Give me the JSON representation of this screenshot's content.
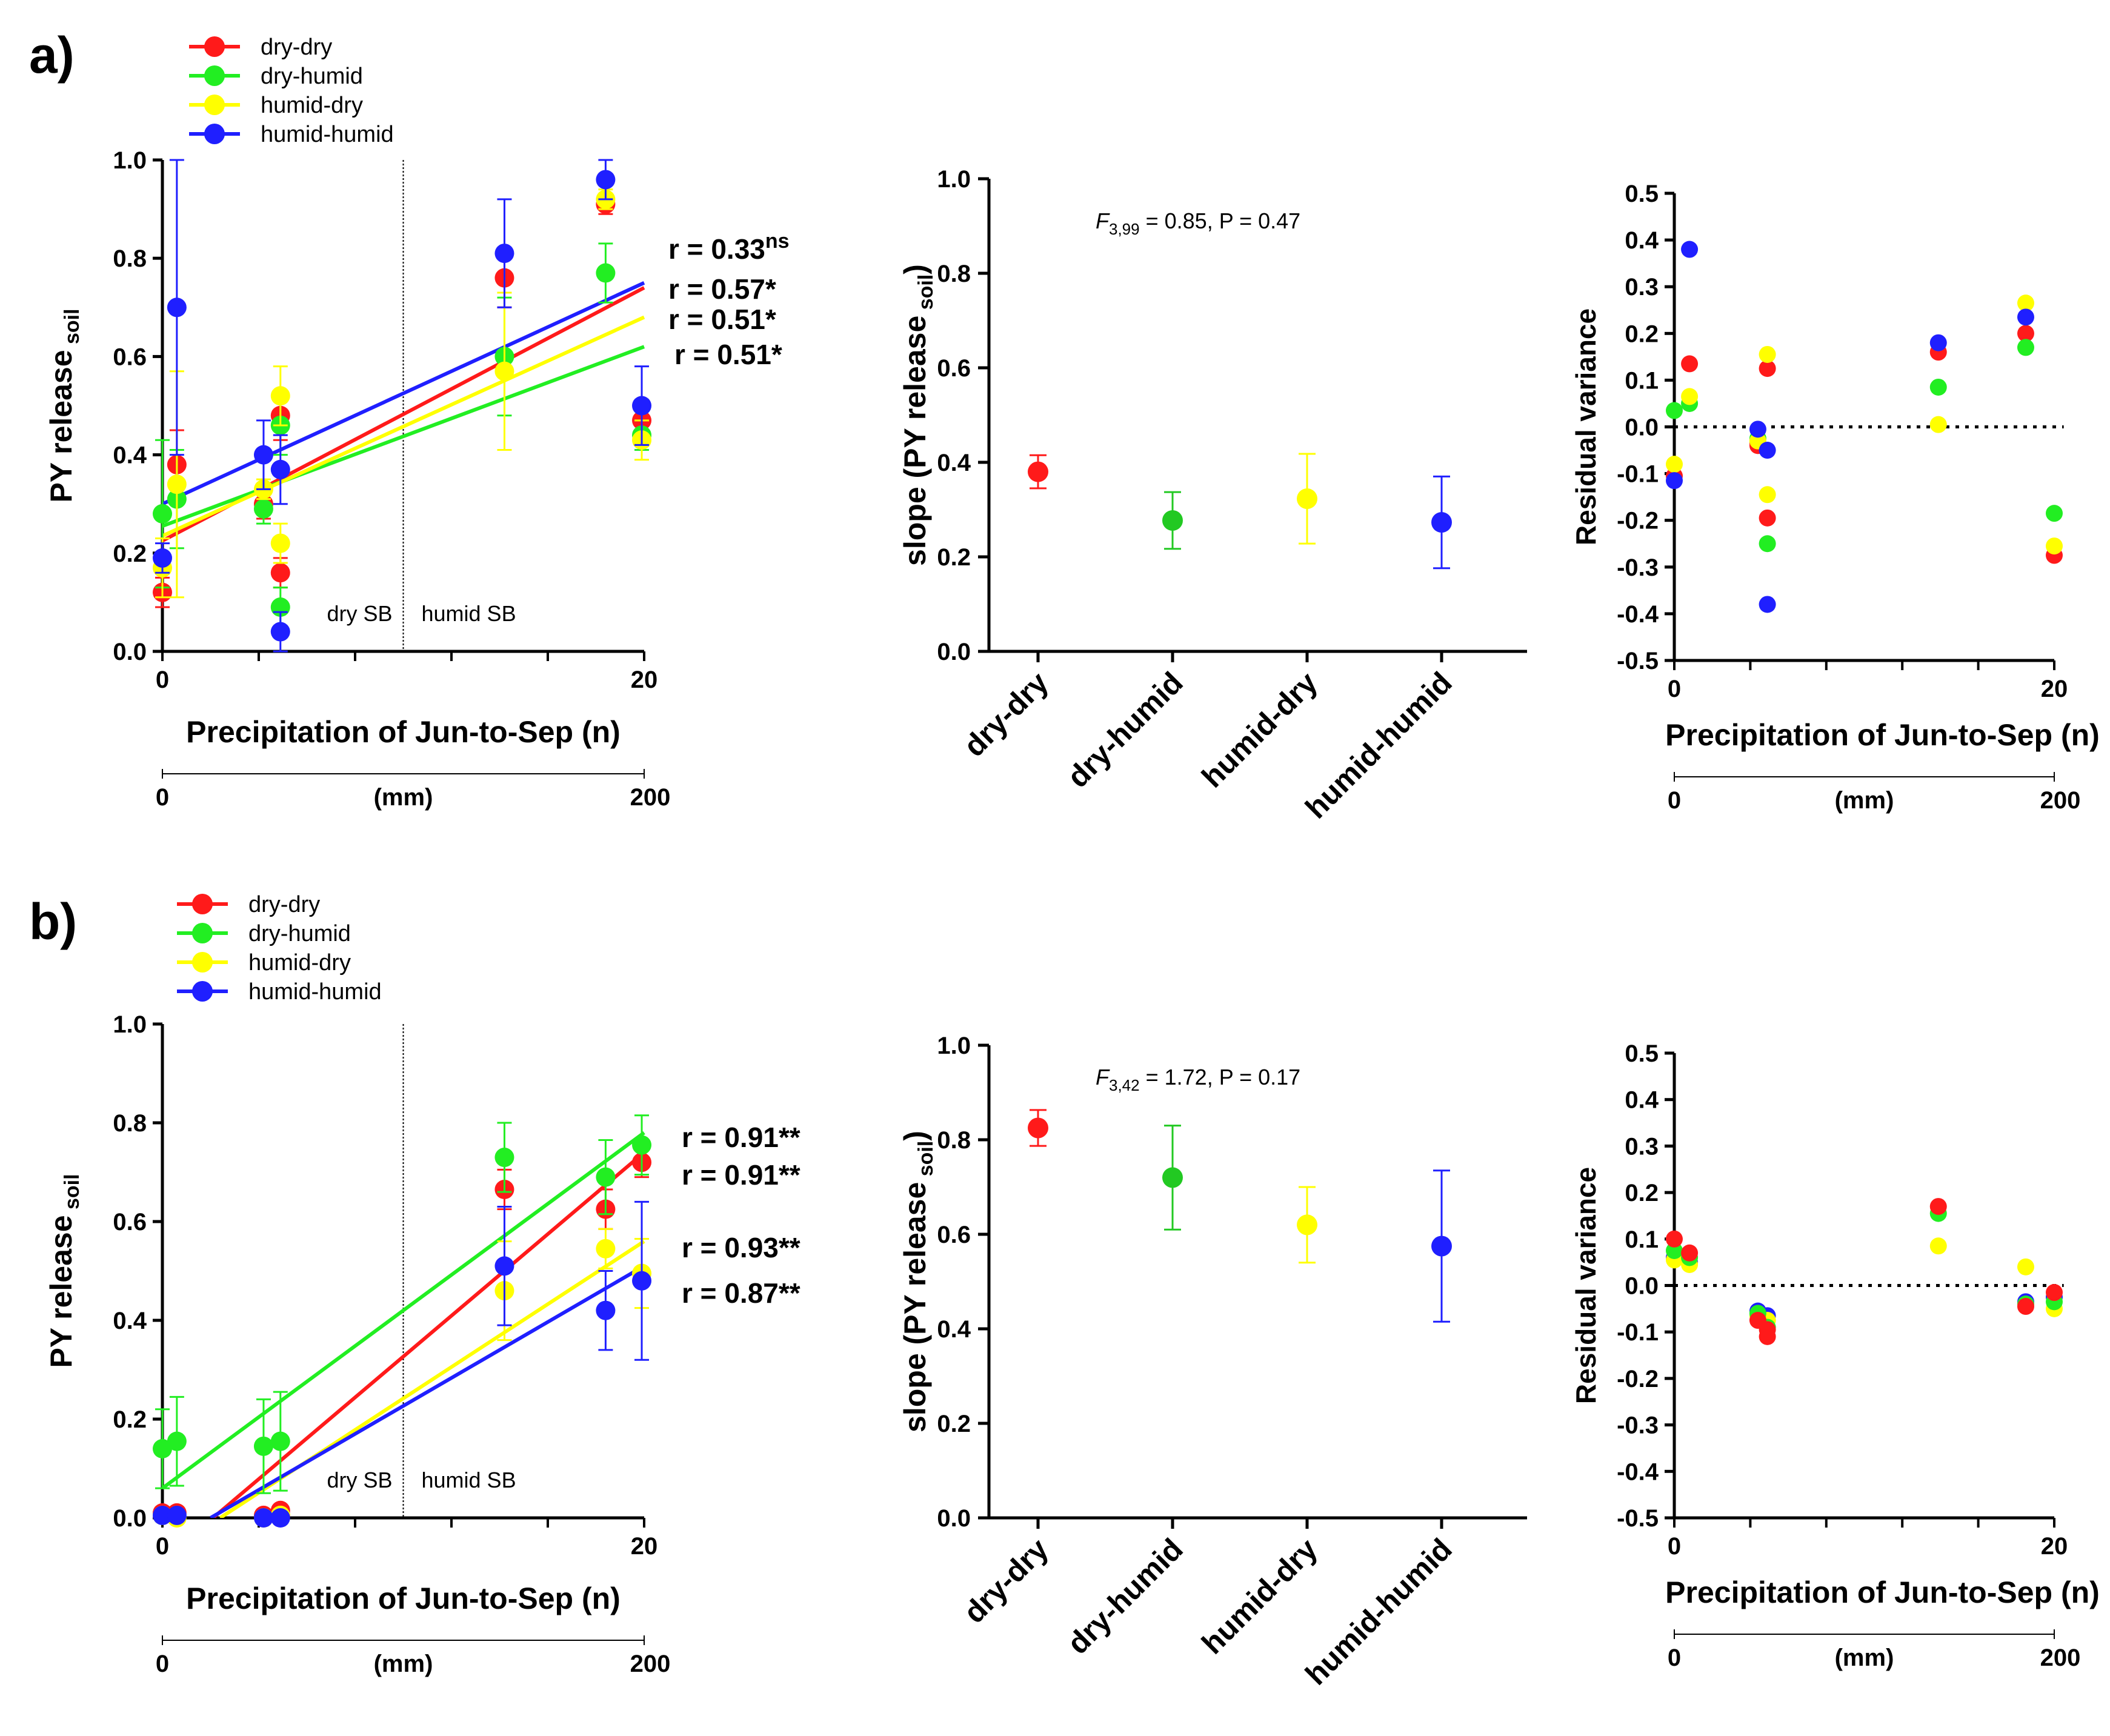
{
  "figure": {
    "panels": [
      {
        "letter": "a)",
        "legend": [
          {
            "label": "dry-dry",
            "color": "#ff1a1a"
          },
          {
            "label": "dry-humid",
            "color": "#22ee22"
          },
          {
            "label": "humid-dry",
            "color": "#ffff00"
          },
          {
            "label": "humid-humid",
            "color": "#1f1fff"
          }
        ],
        "r_labels": [
          {
            "text": "r = 0.33",
            "sup": "ns",
            "color": "#1f1fff"
          },
          {
            "text": "r = 0.57*",
            "sup": "",
            "color": "#ff1a1a"
          },
          {
            "text": "r = 0.51*",
            "sup": "",
            "color": "#d4c400"
          },
          {
            "text": "r = 0.51*",
            "sup": "",
            "color": "#1cb81c"
          }
        ],
        "stat_text": {
          "F": "F",
          "sub": "3,99",
          "rest": " = 0.85, P = 0.47"
        }
      },
      {
        "letter": "b)",
        "legend": [
          {
            "label": "dry-dry",
            "color": "#ff1a1a"
          },
          {
            "label": "dry-humid",
            "color": "#22ee22"
          },
          {
            "label": "humid-dry",
            "color": "#ffff00"
          },
          {
            "label": "humid-humid",
            "color": "#1f1fff"
          }
        ],
        "r_labels": [
          {
            "text": "r = 0.91**",
            "sup": "",
            "color": "#1cb81c"
          },
          {
            "text": "r = 0.91**",
            "sup": "",
            "color": "#ff1a1a"
          },
          {
            "text": "r = 0.93**",
            "sup": "",
            "color": "#d4c400"
          },
          {
            "text": "r = 0.87**",
            "sup": "",
            "color": "#1f1fff"
          }
        ],
        "stat_text": {
          "F": "F",
          "sub": "3,42",
          "rest": " = 1.72, P = 0.17"
        }
      }
    ]
  },
  "chart_data": [
    {
      "id": "a-scatter",
      "type": "scatter",
      "panel": "a",
      "ylabel": "PY release",
      "ylabel_sub": "soil",
      "xlabel": "Precipitation of Jun-to-Sep (n)",
      "xlabel_sub": "(mm)",
      "xlim": [
        0,
        20
      ],
      "ylim": [
        0,
        1.0
      ],
      "x_ticks": [
        0,
        20
      ],
      "y_ticks": [
        "0.0",
        "0.2",
        "0.4",
        "0.6",
        "0.8",
        "1.0"
      ],
      "secondary_ticks": [
        "0",
        "200"
      ],
      "divider_x": 10,
      "annotations": [
        "dry SB",
        "humid SB"
      ],
      "series": [
        {
          "name": "dry-dry",
          "color": "#ff1a1a",
          "points": [
            [
              0,
              0.12,
              0.03
            ],
            [
              0.6,
              0.38,
              0.07
            ],
            [
              4.2,
              0.3,
              0.03
            ],
            [
              4.9,
              0.16,
              0.03
            ],
            [
              4.9,
              0.48,
              0.05
            ],
            [
              14.2,
              0.76,
              0.06
            ],
            [
              18.4,
              0.91,
              0.02
            ],
            [
              19.9,
              0.47,
              0.03
            ]
          ],
          "fit": [
            [
              0,
              0.225
            ],
            [
              20,
              0.74
            ]
          ]
        },
        {
          "name": "dry-humid",
          "color": "#22ee22",
          "points": [
            [
              0,
              0.28,
              0.15
            ],
            [
              0.6,
              0.31,
              0.1
            ],
            [
              4.2,
              0.29,
              0.03
            ],
            [
              4.9,
              0.09,
              0.04
            ],
            [
              4.9,
              0.46,
              0.06
            ],
            [
              14.2,
              0.6,
              0.12
            ],
            [
              18.4,
              0.77,
              0.06
            ],
            [
              19.9,
              0.44,
              0.03
            ]
          ],
          "fit": [
            [
              0,
              0.255
            ],
            [
              20,
              0.62
            ]
          ]
        },
        {
          "name": "humid-dry",
          "color": "#ffff00",
          "points": [
            [
              0,
              0.17,
              0.06
            ],
            [
              0.6,
              0.34,
              0.23
            ],
            [
              4.2,
              0.33,
              0.02
            ],
            [
              4.9,
              0.22,
              0.04
            ],
            [
              4.9,
              0.52,
              0.06
            ],
            [
              14.2,
              0.57,
              0.16
            ],
            [
              18.4,
              0.92,
              0.02
            ],
            [
              19.9,
              0.43,
              0.04
            ]
          ],
          "fit": [
            [
              0,
              0.235
            ],
            [
              20,
              0.68
            ]
          ]
        },
        {
          "name": "humid-humid",
          "color": "#1f1fff",
          "points": [
            [
              0,
              0.19,
              0.03
            ],
            [
              0.6,
              0.7,
              0.3
            ],
            [
              4.2,
              0.4,
              0.07
            ],
            [
              4.9,
              0.04,
              0.04
            ],
            [
              4.9,
              0.37,
              0.07
            ],
            [
              14.2,
              0.81,
              0.11
            ],
            [
              18.4,
              0.96,
              0.04
            ],
            [
              19.9,
              0.5,
              0.08
            ]
          ],
          "fit": [
            [
              0,
              0.3
            ],
            [
              20,
              0.75
            ]
          ]
        }
      ]
    },
    {
      "id": "a-slope",
      "type": "scatter",
      "panel": "a",
      "ylabel": "slope (PY release",
      "ylabel_sub": "soil",
      "ylabel_end": ")",
      "ylim": [
        0,
        1.0
      ],
      "y_ticks": [
        "0.0",
        "0.2",
        "0.4",
        "0.6",
        "0.8",
        "1.0"
      ],
      "categories": [
        "dry-dry",
        "dry-humid",
        "humid-dry",
        "humid-humid"
      ],
      "values": [
        0.38,
        0.277,
        0.323,
        0.273
      ],
      "errors": [
        0.035,
        0.06,
        0.095,
        0.097
      ],
      "colors": [
        "#ff1a1a",
        "#22c922",
        "#ffff00",
        "#1f1fff"
      ]
    },
    {
      "id": "a-residual",
      "type": "scatter",
      "panel": "a",
      "ylabel": "Residual variance",
      "xlabel": "Precipitation of Jun-to-Sep (n)",
      "xlabel_sub": "(mm)",
      "xlim": [
        0,
        20
      ],
      "ylim": [
        -0.5,
        0.5
      ],
      "x_ticks": [
        0,
        20
      ],
      "y_ticks": [
        "-0.5",
        "-0.4",
        "-0.3",
        "-0.2",
        "-0.1",
        "0.0",
        "0.1",
        "0.2",
        "0.3",
        "0.4",
        "0.5"
      ],
      "secondary_ticks": [
        "0",
        "200"
      ],
      "series": [
        {
          "name": "dry-dry",
          "color": "#ff1a1a",
          "points": [
            [
              0,
              -0.105
            ],
            [
              0.8,
              0.135
            ],
            [
              4.4,
              -0.04
            ],
            [
              4.4,
              -0.035
            ],
            [
              4.9,
              0.125
            ],
            [
              4.9,
              -0.195
            ],
            [
              13.9,
              0.16
            ],
            [
              18.5,
              0.2
            ],
            [
              20,
              -0.275
            ]
          ]
        },
        {
          "name": "dry-humid",
          "color": "#22ee22",
          "points": [
            [
              0,
              0.035
            ],
            [
              0.8,
              0.05
            ],
            [
              4.4,
              -0.025
            ],
            [
              4.9,
              -0.25
            ],
            [
              13.9,
              0.085
            ],
            [
              18.5,
              0.17
            ],
            [
              20,
              -0.185
            ]
          ]
        },
        {
          "name": "humid-dry",
          "color": "#ffff00",
          "points": [
            [
              0,
              -0.08
            ],
            [
              0.8,
              0.065
            ],
            [
              4.4,
              -0.03
            ],
            [
              4.9,
              0.155
            ],
            [
              4.9,
              -0.145
            ],
            [
              13.9,
              0.005
            ],
            [
              18.5,
              0.265
            ],
            [
              20,
              -0.255
            ]
          ]
        },
        {
          "name": "humid-humid",
          "color": "#1f1fff",
          "points": [
            [
              0,
              -0.115
            ],
            [
              0.8,
              0.38
            ],
            [
              4.4,
              -0.005
            ],
            [
              4.9,
              -0.05
            ],
            [
              4.9,
              -0.38
            ],
            [
              13.9,
              0.18
            ],
            [
              18.5,
              0.235
            ]
          ]
        }
      ]
    },
    {
      "id": "b-scatter",
      "type": "scatter",
      "panel": "b",
      "ylabel": "PY release",
      "ylabel_sub": "soil",
      "xlabel": "Precipitation of Jun-to-Sep (n)",
      "xlabel_sub": "(mm)",
      "xlim": [
        0,
        20
      ],
      "ylim": [
        0,
        1.0
      ],
      "x_ticks": [
        0,
        20
      ],
      "y_ticks": [
        "0.0",
        "0.2",
        "0.4",
        "0.6",
        "0.8",
        "1.0"
      ],
      "secondary_ticks": [
        "0",
        "200"
      ],
      "divider_x": 10,
      "annotations": [
        "dry SB",
        "humid SB"
      ],
      "series": [
        {
          "name": "dry-dry",
          "color": "#ff1a1a",
          "points": [
            [
              0,
              0.01,
              0.01
            ],
            [
              0.6,
              0.01,
              0.01
            ],
            [
              4.2,
              0.005,
              0.005
            ],
            [
              4.9,
              0.005,
              0.005
            ],
            [
              4.9,
              0.015,
              0.01
            ],
            [
              14.2,
              0.665,
              0.04
            ],
            [
              18.4,
              0.625,
              0.04
            ],
            [
              19.9,
              0.72,
              0.03
            ]
          ],
          "fit": [
            [
              2.1,
              0
            ],
            [
              20,
              0.74
            ]
          ]
        },
        {
          "name": "dry-humid",
          "color": "#22ee22",
          "points": [
            [
              0,
              0.14,
              0.08
            ],
            [
              0.6,
              0.155,
              0.09
            ],
            [
              4.2,
              0.145,
              0.095
            ],
            [
              4.9,
              0.155,
              0.1
            ],
            [
              14.2,
              0.73,
              0.07
            ],
            [
              18.4,
              0.69,
              0.075
            ],
            [
              19.9,
              0.755,
              0.06
            ]
          ],
          "fit": [
            [
              0,
              0.06
            ],
            [
              20,
              0.78
            ]
          ]
        },
        {
          "name": "humid-dry",
          "color": "#ffff00",
          "points": [
            [
              0,
              0.005,
              0.01
            ],
            [
              0.6,
              0.0,
              0.01
            ],
            [
              4.2,
              0.0,
              0.005
            ],
            [
              4.9,
              0.005,
              0.01
            ],
            [
              14.2,
              0.46,
              0.1
            ],
            [
              18.4,
              0.545,
              0.04
            ],
            [
              19.9,
              0.495,
              0.07
            ]
          ],
          "fit": [
            [
              2.4,
              0
            ],
            [
              20,
              0.56
            ]
          ]
        },
        {
          "name": "humid-humid",
          "color": "#1f1fff",
          "points": [
            [
              0,
              0.005,
              0.01
            ],
            [
              0.6,
              0.005,
              0.01
            ],
            [
              4.2,
              0.0,
              0.005
            ],
            [
              4.9,
              0.0,
              0.005
            ],
            [
              14.2,
              0.51,
              0.12
            ],
            [
              18.4,
              0.42,
              0.08
            ],
            [
              19.9,
              0.48,
              0.16
            ]
          ],
          "fit": [
            [
              2.0,
              0
            ],
            [
              20,
              0.51
            ]
          ]
        }
      ]
    },
    {
      "id": "b-slope",
      "type": "scatter",
      "panel": "b",
      "ylabel": "slope (PY release",
      "ylabel_sub": "soil",
      "ylabel_end": ")",
      "ylim": [
        0,
        1.0
      ],
      "y_ticks": [
        "0.0",
        "0.2",
        "0.4",
        "0.6",
        "0.8",
        "1.0"
      ],
      "categories": [
        "dry-dry",
        "dry-humid",
        "humid-dry",
        "humid-humid"
      ],
      "values": [
        0.825,
        0.72,
        0.62,
        0.575
      ],
      "errors": [
        0.038,
        0.11,
        0.08,
        0.16
      ],
      "colors": [
        "#ff1a1a",
        "#22c922",
        "#ffff00",
        "#1f1fff"
      ]
    },
    {
      "id": "b-residual",
      "type": "scatter",
      "panel": "b",
      "ylabel": "Residual variance",
      "xlabel": "Precipitation of Jun-to-Sep (n)",
      "xlabel_sub": "(mm)",
      "xlim": [
        0,
        20
      ],
      "ylim": [
        -0.5,
        0.5
      ],
      "x_ticks": [
        0,
        20
      ],
      "y_ticks": [
        "-0.5",
        "-0.4",
        "-0.3",
        "-0.2",
        "-0.1",
        "0.0",
        "0.1",
        "0.2",
        "0.3",
        "0.4",
        "0.5"
      ],
      "secondary_ticks": [
        "0",
        "200"
      ],
      "series": [
        {
          "name": "humid-humid",
          "color": "#1f1fff",
          "points": [
            [
              0,
              0.06
            ],
            [
              0.8,
              0.05
            ],
            [
              4.4,
              -0.055
            ],
            [
              4.9,
              -0.065
            ],
            [
              18.5,
              -0.035
            ],
            [
              20,
              -0.025
            ]
          ]
        },
        {
          "name": "humid-dry",
          "color": "#ffff00",
          "points": [
            [
              0,
              0.055
            ],
            [
              0.8,
              0.045
            ],
            [
              4.4,
              -0.065
            ],
            [
              4.9,
              -0.075
            ],
            [
              13.9,
              0.085
            ],
            [
              18.5,
              0.04
            ],
            [
              20,
              -0.05
            ]
          ]
        },
        {
          "name": "dry-humid",
          "color": "#22ee22",
          "points": [
            [
              0,
              0.075
            ],
            [
              0.8,
              0.06
            ],
            [
              4.4,
              -0.06
            ],
            [
              4.9,
              -0.09
            ],
            [
              13.9,
              0.155
            ],
            [
              18.5,
              -0.04
            ],
            [
              20,
              -0.035
            ]
          ]
        },
        {
          "name": "dry-dry",
          "color": "#ff1a1a",
          "points": [
            [
              0,
              0.1
            ],
            [
              0.8,
              0.07
            ],
            [
              4.4,
              -0.075
            ],
            [
              4.9,
              -0.11
            ],
            [
              4.9,
              -0.095
            ],
            [
              13.9,
              0.17
            ],
            [
              18.5,
              -0.045
            ],
            [
              20,
              -0.015
            ]
          ]
        }
      ]
    }
  ]
}
